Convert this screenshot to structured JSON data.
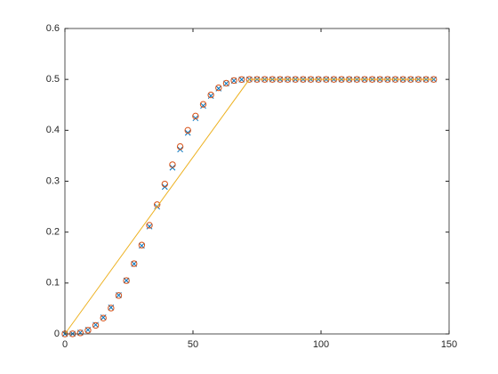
{
  "chart_data": {
    "type": "line",
    "x": [
      0,
      3,
      6,
      9,
      12,
      15,
      18,
      21,
      24,
      27,
      30,
      33,
      36,
      39,
      42,
      45,
      48,
      51,
      54,
      57,
      60,
      63,
      66,
      69,
      72,
      75,
      78,
      81,
      84,
      87,
      90,
      93,
      96,
      99,
      102,
      105,
      108,
      111,
      114,
      117,
      120,
      123,
      126,
      129,
      132,
      135,
      138,
      141,
      144
    ],
    "xlim": [
      0,
      150
    ],
    "xticks": [
      0,
      50,
      100,
      150
    ],
    "ylim": [
      0,
      0.6
    ],
    "yticks": [
      0,
      0.1,
      0.2,
      0.3,
      0.4,
      0.5,
      0.6
    ],
    "box": true,
    "grid": false,
    "series": [
      {
        "color": "#0072bd",
        "marker": "x",
        "values": [
          0,
          0.0003,
          0.0025,
          0.008,
          0.0178,
          0.0323,
          0.0518,
          0.0761,
          0.1049,
          0.1376,
          0.1733,
          0.2111,
          0.25,
          0.2889,
          0.3267,
          0.3624,
          0.3951,
          0.4239,
          0.4482,
          0.4677,
          0.4822,
          0.492,
          0.4975,
          0.4997,
          0.5,
          0.5,
          0.5,
          0.5,
          0.5,
          0.5,
          0.5,
          0.5,
          0.5,
          0.5,
          0.5,
          0.5,
          0.5,
          0.5,
          0.5,
          0.5,
          0.5,
          0.5,
          0.5,
          0.5,
          0.5,
          0.5,
          0.5,
          0.5,
          0.5
        ]
      },
      {
        "color": "#d95319",
        "marker": "o",
        "values": [
          0,
          0.0002,
          0.002,
          0.0072,
          0.0168,
          0.0312,
          0.0508,
          0.0755,
          0.1048,
          0.138,
          0.1745,
          0.2135,
          0.254,
          0.2945,
          0.3325,
          0.368,
          0.4,
          0.428,
          0.451,
          0.4695,
          0.4835,
          0.4925,
          0.4978,
          0.4998,
          0.5,
          0.5,
          0.5,
          0.5,
          0.5,
          0.5,
          0.5,
          0.5,
          0.5,
          0.5,
          0.5,
          0.5,
          0.5,
          0.5,
          0.5,
          0.5,
          0.5,
          0.5,
          0.5,
          0.5,
          0.5,
          0.5,
          0.5,
          0.5,
          0.5
        ]
      },
      {
        "color": "#edb120",
        "marker": "none",
        "x": [
          0,
          72,
          144
        ],
        "values": [
          0,
          0.5,
          0.5
        ]
      }
    ]
  }
}
